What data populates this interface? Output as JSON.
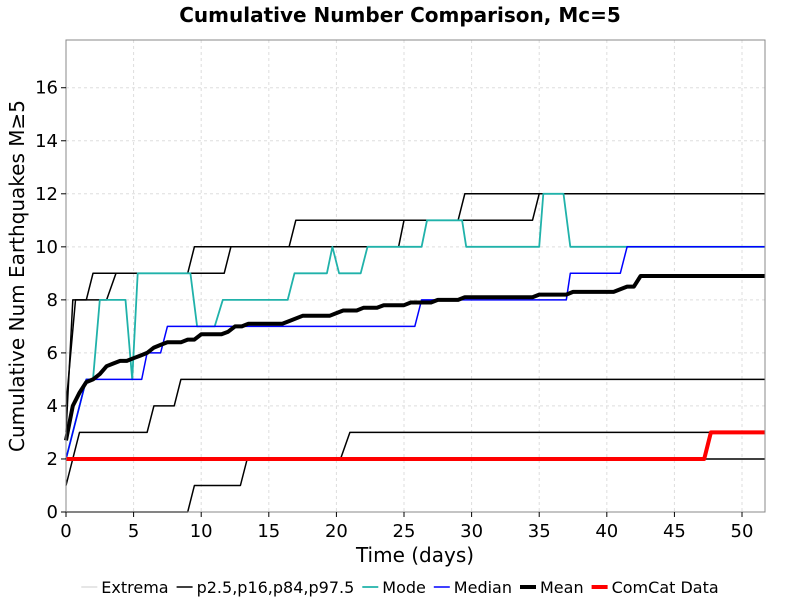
{
  "chart_data": {
    "type": "line",
    "title": "Cumulative Number Comparison, Mc=5",
    "xlabel": "Time (days)",
    "ylabel": "Cumulative Num Earthquakes M≥5",
    "xlim": [
      0,
      51.7
    ],
    "ylim": [
      0,
      17.8
    ],
    "xticks": [
      0,
      5,
      10,
      15,
      20,
      25,
      30,
      35,
      40,
      45,
      50
    ],
    "yticks": [
      0,
      2,
      4,
      6,
      8,
      10,
      12,
      14,
      16
    ],
    "grid": true,
    "legend_position": "bottom",
    "legend": [
      {
        "label": "Extrema",
        "color": "#cccccc",
        "width": 1
      },
      {
        "label": "p2.5,p16,p84,p97.5",
        "color": "#000000",
        "width": 1.5
      },
      {
        "label": "Mode",
        "color": "#20b2aa",
        "width": 1.8
      },
      {
        "label": "Median",
        "color": "#0000ff",
        "width": 1.5
      },
      {
        "label": "Mean",
        "color": "#000000",
        "width": 4
      },
      {
        "label": "ComCat Data",
        "color": "#ff0000",
        "width": 4
      }
    ],
    "series": [
      {
        "style": "p2.5,p16,p84,p97.5",
        "color": "#000000",
        "width": 1.5,
        "points": [
          [
            0,
            0
          ],
          [
            9,
            0
          ],
          [
            9.5,
            1
          ],
          [
            12.9,
            1
          ],
          [
            13.4,
            2
          ],
          [
            51.7,
            2
          ]
        ]
      },
      {
        "style": "p2.5,p16,p84,p97.5",
        "color": "#000000",
        "width": 1.5,
        "points": [
          [
            0,
            1
          ],
          [
            1,
            3
          ],
          [
            6,
            3
          ],
          [
            6.5,
            4
          ],
          [
            8,
            4
          ],
          [
            8.5,
            5
          ],
          [
            51.7,
            5
          ]
        ]
      },
      {
        "style": "p2.5,p16,p84,p97.5",
        "color": "#000000",
        "width": 1.5,
        "points": [
          [
            0,
            2
          ],
          [
            20.3,
            2
          ],
          [
            21,
            3
          ],
          [
            47,
            3
          ],
          [
            47.4,
            3
          ],
          [
            51.7,
            3
          ]
        ]
      },
      {
        "style": "p2.5,p16,p84,p97.5",
        "color": "#000000",
        "width": 1.5,
        "points": [
          [
            0,
            3
          ],
          [
            0.5,
            8
          ],
          [
            1.5,
            8
          ],
          [
            2,
            9
          ],
          [
            9,
            9
          ],
          [
            9.5,
            10
          ],
          [
            16.5,
            10
          ],
          [
            17,
            11
          ],
          [
            29,
            11
          ],
          [
            29.5,
            12
          ],
          [
            51.7,
            12
          ]
        ]
      },
      {
        "style": "p2.5,p16,p84,p97.5",
        "color": "#000000",
        "width": 1.5,
        "points": [
          [
            0,
            4
          ],
          [
            0.7,
            8
          ],
          [
            3,
            8
          ],
          [
            3.7,
            9
          ],
          [
            11.7,
            9
          ],
          [
            12.2,
            10
          ],
          [
            24.6,
            10
          ],
          [
            25,
            11
          ],
          [
            34.5,
            11
          ],
          [
            35,
            12
          ],
          [
            51.7,
            12
          ]
        ]
      },
      {
        "style": "Mode",
        "color": "#20b2aa",
        "width": 1.8,
        "points": [
          [
            0,
            2
          ],
          [
            1.5,
            5
          ],
          [
            2,
            5
          ],
          [
            2.5,
            8
          ],
          [
            4.4,
            8
          ],
          [
            4.9,
            5
          ],
          [
            5.3,
            9
          ],
          [
            9.2,
            9
          ],
          [
            9.7,
            7
          ],
          [
            11,
            7
          ],
          [
            11.6,
            8
          ],
          [
            16.4,
            8
          ],
          [
            16.9,
            9
          ],
          [
            19.3,
            9
          ],
          [
            19.7,
            10
          ],
          [
            20.2,
            9
          ],
          [
            21.8,
            9
          ],
          [
            22.3,
            10
          ],
          [
            26.3,
            10
          ],
          [
            26.7,
            11
          ],
          [
            29.3,
            11
          ],
          [
            29.6,
            10
          ],
          [
            35,
            10
          ],
          [
            35.3,
            12
          ],
          [
            36.8,
            12
          ],
          [
            37.3,
            10
          ],
          [
            51.7,
            10
          ]
        ]
      },
      {
        "style": "Median",
        "color": "#0000ff",
        "width": 1.5,
        "points": [
          [
            0,
            2
          ],
          [
            1.5,
            5
          ],
          [
            5.6,
            5
          ],
          [
            6,
            6
          ],
          [
            7,
            6
          ],
          [
            7.5,
            7
          ],
          [
            25.8,
            7
          ],
          [
            26.3,
            8
          ],
          [
            37,
            8
          ],
          [
            37.3,
            9
          ],
          [
            41,
            9
          ],
          [
            41.5,
            10
          ],
          [
            51.7,
            10
          ]
        ]
      },
      {
        "style": "Mean",
        "color": "#000000",
        "width": 4,
        "points": [
          [
            0,
            2.7
          ],
          [
            0.5,
            4.0
          ],
          [
            1.0,
            4.5
          ],
          [
            1.5,
            4.9
          ],
          [
            2.0,
            5.0
          ],
          [
            2.5,
            5.2
          ],
          [
            3.0,
            5.5
          ],
          [
            3.5,
            5.6
          ],
          [
            4.0,
            5.7
          ],
          [
            4.5,
            5.7
          ],
          [
            5.0,
            5.8
          ],
          [
            5.5,
            5.9
          ],
          [
            6.0,
            6.0
          ],
          [
            6.5,
            6.2
          ],
          [
            7.0,
            6.3
          ],
          [
            7.5,
            6.4
          ],
          [
            8.5,
            6.4
          ],
          [
            9.0,
            6.5
          ],
          [
            9.5,
            6.5
          ],
          [
            10.0,
            6.7
          ],
          [
            11.5,
            6.7
          ],
          [
            12.0,
            6.8
          ],
          [
            12.5,
            7.0
          ],
          [
            13.0,
            7.0
          ],
          [
            13.5,
            7.1
          ],
          [
            16.0,
            7.1
          ],
          [
            16.5,
            7.2
          ],
          [
            17.5,
            7.4
          ],
          [
            19.5,
            7.4
          ],
          [
            20.0,
            7.5
          ],
          [
            20.5,
            7.6
          ],
          [
            21.5,
            7.6
          ],
          [
            22.0,
            7.7
          ],
          [
            23.0,
            7.7
          ],
          [
            23.5,
            7.8
          ],
          [
            25.0,
            7.8
          ],
          [
            25.5,
            7.9
          ],
          [
            27.0,
            7.9
          ],
          [
            27.5,
            8.0
          ],
          [
            29.0,
            8.0
          ],
          [
            29.5,
            8.1
          ],
          [
            34.5,
            8.1
          ],
          [
            35.0,
            8.2
          ],
          [
            37.0,
            8.2
          ],
          [
            37.5,
            8.3
          ],
          [
            40.5,
            8.3
          ],
          [
            41.0,
            8.4
          ],
          [
            41.5,
            8.5
          ],
          [
            42.0,
            8.5
          ],
          [
            42.5,
            8.9
          ],
          [
            51.7,
            8.9
          ]
        ]
      },
      {
        "style": "ComCat Data",
        "color": "#ff0000",
        "width": 4,
        "points": [
          [
            0,
            2
          ],
          [
            47.2,
            2
          ],
          [
            47.7,
            3
          ],
          [
            51.7,
            3
          ]
        ]
      }
    ]
  }
}
